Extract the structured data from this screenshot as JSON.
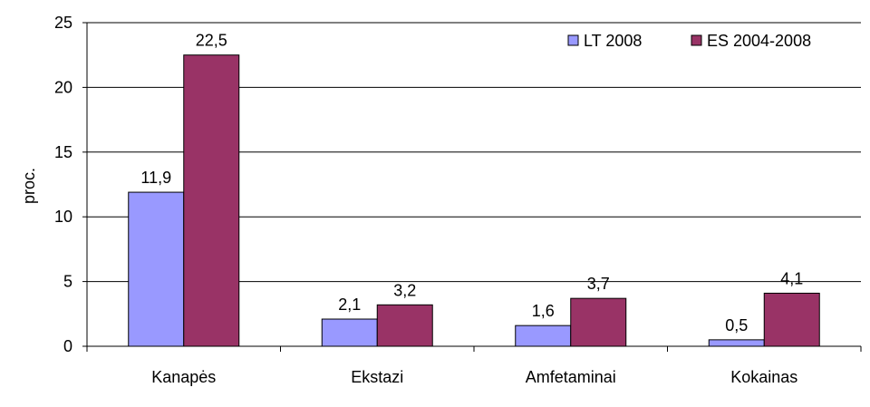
{
  "chart_data": {
    "type": "bar",
    "categories": [
      "Kanapės",
      "Ekstazi",
      "Amfetaminai",
      "Kokainas"
    ],
    "series": [
      {
        "name": "LT 2008",
        "values": [
          11.9,
          2.1,
          1.6,
          0.5
        ],
        "labels": [
          "11,9",
          "2,1",
          "1,6",
          "0,5"
        ],
        "color": "#9999ff"
      },
      {
        "name": "ES 2004-2008",
        "values": [
          22.5,
          3.2,
          3.7,
          4.1
        ],
        "labels": [
          "22,5",
          "3,2",
          "3,7",
          "4,1"
        ],
        "color": "#993366"
      }
    ],
    "title": "",
    "xlabel": "",
    "ylabel": "proc.",
    "ylim": [
      0,
      25
    ],
    "yticks": [
      0,
      5,
      10,
      15,
      20,
      25
    ],
    "ytick_labels": [
      "0",
      "5",
      "10",
      "15",
      "20",
      "25"
    ],
    "grid": true,
    "legend_position": "top-right"
  }
}
